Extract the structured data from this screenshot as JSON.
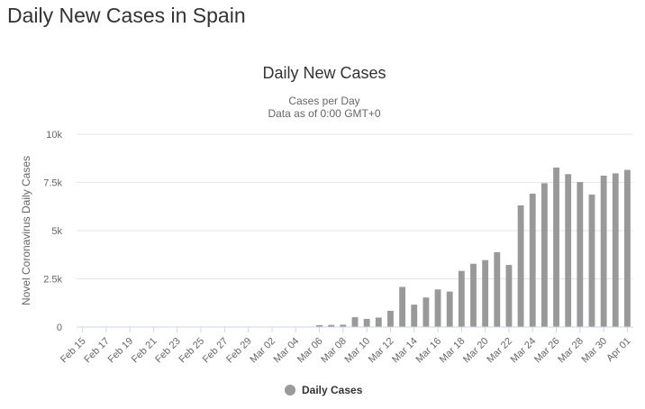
{
  "page": {
    "title": "Daily New Cases in Spain"
  },
  "chart_data": {
    "type": "bar",
    "title": "Daily New Cases",
    "subtitle_lines": [
      "Cases per Day",
      "Data as of 0:00 GMT+0"
    ],
    "ylabel": "Novel Coronavirus Daily Cases",
    "xlabel": "",
    "ylim": [
      0,
      10000
    ],
    "y_ticks": [
      0,
      2500,
      5000,
      7500,
      10000
    ],
    "y_tick_labels": [
      "0",
      "2.5k",
      "5k",
      "7.5k",
      "10k"
    ],
    "grid": true,
    "legend": "bottom-center",
    "bar_color": "#999999",
    "categories": [
      "Feb 15",
      "Feb 16",
      "Feb 17",
      "Feb 18",
      "Feb 19",
      "Feb 20",
      "Feb 21",
      "Feb 22",
      "Feb 23",
      "Feb 24",
      "Feb 25",
      "Feb 26",
      "Feb 27",
      "Feb 28",
      "Feb 29",
      "Mar 01",
      "Mar 02",
      "Mar 03",
      "Mar 04",
      "Mar 05",
      "Mar 06",
      "Mar 07",
      "Mar 08",
      "Mar 09",
      "Mar 10",
      "Mar 11",
      "Mar 12",
      "Mar 13",
      "Mar 14",
      "Mar 15",
      "Mar 16",
      "Mar 17",
      "Mar 18",
      "Mar 19",
      "Mar 20",
      "Mar 21",
      "Mar 22",
      "Mar 23",
      "Mar 24",
      "Mar 25",
      "Mar 26",
      "Mar 27",
      "Mar 28",
      "Mar 29",
      "Mar 30",
      "Mar 31",
      "Apr 01"
    ],
    "x_tick_labels": [
      "Feb 15",
      "Feb 17",
      "Feb 19",
      "Feb 21",
      "Feb 23",
      "Feb 25",
      "Feb 27",
      "Feb 29",
      "Mar 02",
      "Mar 04",
      "Mar 06",
      "Mar 08",
      "Mar 10",
      "Mar 12",
      "Mar 14",
      "Mar 16",
      "Mar 18",
      "Mar 20",
      "Mar 22",
      "Mar 24",
      "Mar 26",
      "Mar 28",
      "Mar 30",
      "Apr 01"
    ],
    "series": [
      {
        "name": "Daily Cases",
        "values": [
          0,
          0,
          0,
          0,
          0,
          0,
          0,
          0,
          0,
          0,
          0,
          0,
          0,
          0,
          0,
          0,
          0,
          0,
          0,
          0,
          100,
          110,
          120,
          510,
          420,
          490,
          840,
          2080,
          1160,
          1530,
          1950,
          1840,
          2910,
          3280,
          3470,
          3880,
          3220,
          6310,
          6920,
          7460,
          8270,
          7930,
          7520,
          6870,
          7850,
          7970,
          8150
        ]
      }
    ]
  }
}
